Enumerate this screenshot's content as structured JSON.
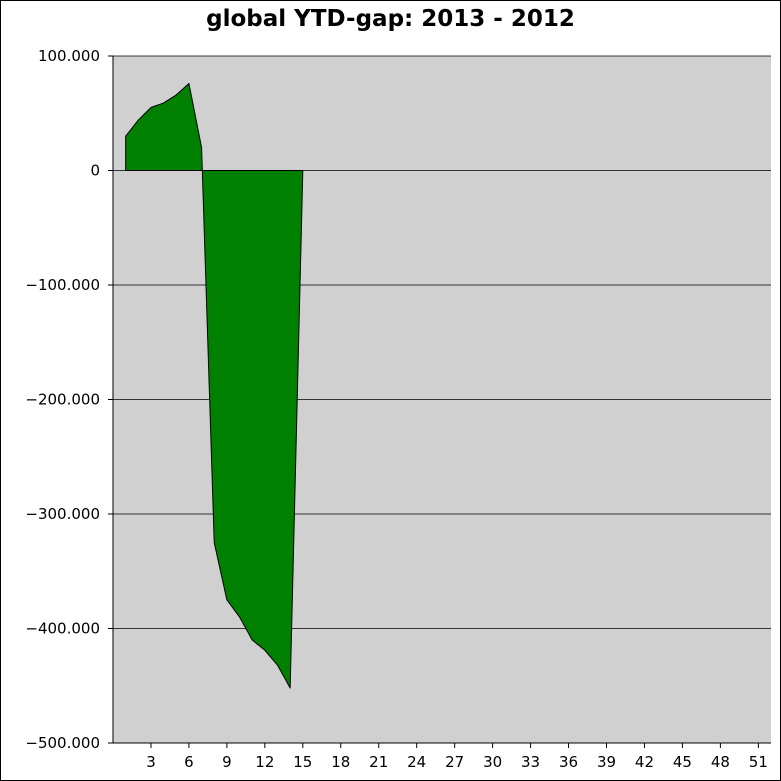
{
  "chart_data": {
    "type": "area",
    "title": "global YTD-gap: 2013 - 2012",
    "xlabel": "",
    "ylabel": "",
    "xlim": [
      0,
      52
    ],
    "ylim": [
      -500000,
      100000
    ],
    "x_ticks": [
      3,
      6,
      9,
      12,
      15,
      18,
      21,
      24,
      27,
      30,
      33,
      36,
      39,
      42,
      45,
      48,
      51
    ],
    "y_ticks": [
      100000,
      0,
      -100000,
      -200000,
      -300000,
      -400000,
      -500000
    ],
    "y_tick_labels": [
      "100.000",
      "0",
      "−100.000",
      "−200.000",
      "−300.000",
      "−400.000",
      "−500.000"
    ],
    "grid": "horizontal",
    "background": "#d0d0d0",
    "fill_color": "#008000",
    "series": [
      {
        "x": [
          1,
          2,
          3,
          4,
          5,
          6,
          7,
          8,
          9,
          10,
          11,
          12,
          13,
          14,
          15
        ],
        "values": [
          30000,
          44000,
          55000,
          59000,
          66000,
          76000,
          20000,
          -325000,
          -375000,
          -390000,
          -410000,
          -419000,
          -432000,
          -452000,
          0
        ]
      }
    ]
  }
}
